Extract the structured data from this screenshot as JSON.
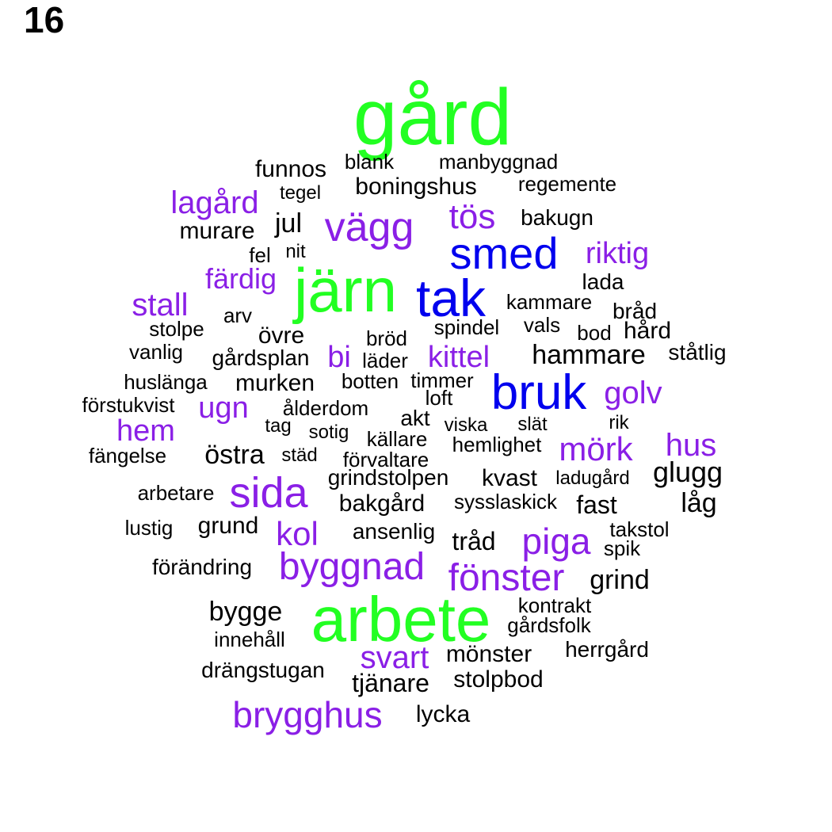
{
  "panel_label": "16",
  "colors": {
    "large": "#22ff22",
    "medium": "#0000ee",
    "small": "#8a1fe6",
    "tiny": "#000000"
  },
  "words": [
    {
      "text": "gård",
      "tier": "large"
    },
    {
      "text": "järn",
      "tier": "large"
    },
    {
      "text": "arbete",
      "tier": "large"
    },
    {
      "text": "smed",
      "tier": "medium"
    },
    {
      "text": "tak",
      "tier": "medium"
    },
    {
      "text": "bruk",
      "tier": "medium"
    },
    {
      "text": "vägg",
      "tier": "small"
    },
    {
      "text": "tös",
      "tier": "small"
    },
    {
      "text": "lagård",
      "tier": "small"
    },
    {
      "text": "riktig",
      "tier": "small"
    },
    {
      "text": "färdig",
      "tier": "small"
    },
    {
      "text": "stall",
      "tier": "small"
    },
    {
      "text": "bi",
      "tier": "small"
    },
    {
      "text": "kittel",
      "tier": "small"
    },
    {
      "text": "golv",
      "tier": "small"
    },
    {
      "text": "ugn",
      "tier": "small"
    },
    {
      "text": "hem",
      "tier": "small"
    },
    {
      "text": "mörk",
      "tier": "small"
    },
    {
      "text": "hus",
      "tier": "small"
    },
    {
      "text": "sida",
      "tier": "small"
    },
    {
      "text": "kol",
      "tier": "small"
    },
    {
      "text": "piga",
      "tier": "small"
    },
    {
      "text": "byggnad",
      "tier": "small"
    },
    {
      "text": "fönster",
      "tier": "small"
    },
    {
      "text": "svart",
      "tier": "small"
    },
    {
      "text": "brygghus",
      "tier": "small"
    },
    {
      "text": "funnos",
      "tier": "tiny"
    },
    {
      "text": "blank",
      "tier": "tiny"
    },
    {
      "text": "manbyggnad",
      "tier": "tiny"
    },
    {
      "text": "tegel",
      "tier": "tiny"
    },
    {
      "text": "boningshus",
      "tier": "tiny"
    },
    {
      "text": "regemente",
      "tier": "tiny"
    },
    {
      "text": "jul",
      "tier": "tiny"
    },
    {
      "text": "bakugn",
      "tier": "tiny"
    },
    {
      "text": "murare",
      "tier": "tiny"
    },
    {
      "text": "fel",
      "tier": "tiny"
    },
    {
      "text": "nit",
      "tier": "tiny"
    },
    {
      "text": "lada",
      "tier": "tiny"
    },
    {
      "text": "kammare",
      "tier": "tiny"
    },
    {
      "text": "bråd",
      "tier": "tiny"
    },
    {
      "text": "arv",
      "tier": "tiny"
    },
    {
      "text": "stolpe",
      "tier": "tiny"
    },
    {
      "text": "övre",
      "tier": "tiny"
    },
    {
      "text": "spindel",
      "tier": "tiny"
    },
    {
      "text": "vals",
      "tier": "tiny"
    },
    {
      "text": "bod",
      "tier": "tiny"
    },
    {
      "text": "hård",
      "tier": "tiny"
    },
    {
      "text": "bröd",
      "tier": "tiny"
    },
    {
      "text": "vanlig",
      "tier": "tiny"
    },
    {
      "text": "gårdsplan",
      "tier": "tiny"
    },
    {
      "text": "läder",
      "tier": "tiny"
    },
    {
      "text": "hammare",
      "tier": "tiny"
    },
    {
      "text": "ståtlig",
      "tier": "tiny"
    },
    {
      "text": "huslänga",
      "tier": "tiny"
    },
    {
      "text": "murken",
      "tier": "tiny"
    },
    {
      "text": "botten",
      "tier": "tiny"
    },
    {
      "text": "timmer",
      "tier": "tiny"
    },
    {
      "text": "förstukvist",
      "tier": "tiny"
    },
    {
      "text": "ålderdom",
      "tier": "tiny"
    },
    {
      "text": "loft",
      "tier": "tiny"
    },
    {
      "text": "akt",
      "tier": "tiny"
    },
    {
      "text": "tag",
      "tier": "tiny"
    },
    {
      "text": "sotig",
      "tier": "tiny"
    },
    {
      "text": "viska",
      "tier": "tiny"
    },
    {
      "text": "slät",
      "tier": "tiny"
    },
    {
      "text": "rik",
      "tier": "tiny"
    },
    {
      "text": "källare",
      "tier": "tiny"
    },
    {
      "text": "hemlighet",
      "tier": "tiny"
    },
    {
      "text": "fängelse",
      "tier": "tiny"
    },
    {
      "text": "östra",
      "tier": "tiny"
    },
    {
      "text": "städ",
      "tier": "tiny"
    },
    {
      "text": "förvaltare",
      "tier": "tiny"
    },
    {
      "text": "glugg",
      "tier": "tiny"
    },
    {
      "text": "grindstolpen",
      "tier": "tiny"
    },
    {
      "text": "kvast",
      "tier": "tiny"
    },
    {
      "text": "ladugård",
      "tier": "tiny"
    },
    {
      "text": "arbetare",
      "tier": "tiny"
    },
    {
      "text": "bakgård",
      "tier": "tiny"
    },
    {
      "text": "sysslaskick",
      "tier": "tiny"
    },
    {
      "text": "fast",
      "tier": "tiny"
    },
    {
      "text": "låg",
      "tier": "tiny"
    },
    {
      "text": "lustig",
      "tier": "tiny"
    },
    {
      "text": "grund",
      "tier": "tiny"
    },
    {
      "text": "ansenlig",
      "tier": "tiny"
    },
    {
      "text": "takstol",
      "tier": "tiny"
    },
    {
      "text": "tråd",
      "tier": "tiny"
    },
    {
      "text": "spik",
      "tier": "tiny"
    },
    {
      "text": "förändring",
      "tier": "tiny"
    },
    {
      "text": "grind",
      "tier": "tiny"
    },
    {
      "text": "bygge",
      "tier": "tiny"
    },
    {
      "text": "kontrakt",
      "tier": "tiny"
    },
    {
      "text": "gårdsfolk",
      "tier": "tiny"
    },
    {
      "text": "innehåll",
      "tier": "tiny"
    },
    {
      "text": "herrgård",
      "tier": "tiny"
    },
    {
      "text": "mönster",
      "tier": "tiny"
    },
    {
      "text": "drängstugan",
      "tier": "tiny"
    },
    {
      "text": "tjänare",
      "tier": "tiny"
    },
    {
      "text": "stolpbod",
      "tier": "tiny"
    },
    {
      "text": "lycka",
      "tier": "tiny"
    }
  ]
}
